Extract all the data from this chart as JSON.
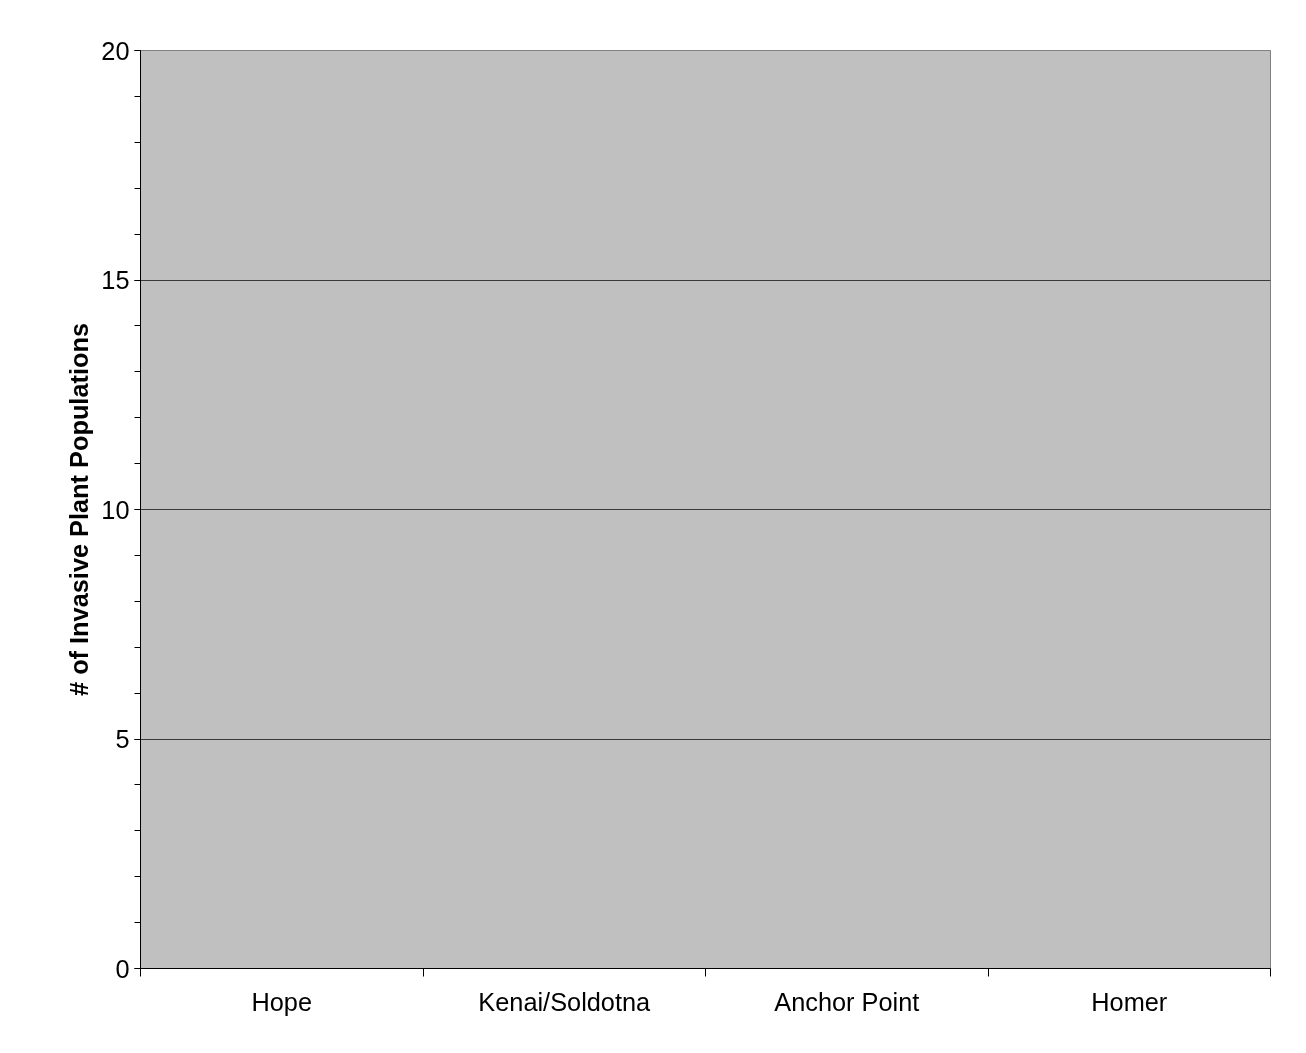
{
  "chart_data": {
    "type": "bar",
    "ylabel": "# of Invasive Plant Populations",
    "categories": [
      "Hope",
      "Kenai/Soldotna",
      "Anchor Point",
      "Homer"
    ],
    "values": [
      0,
      0,
      0,
      0
    ],
    "ylim": [
      0,
      20
    ],
    "yticks": [
      0,
      5,
      10,
      15,
      20
    ],
    "grid": "y"
  }
}
